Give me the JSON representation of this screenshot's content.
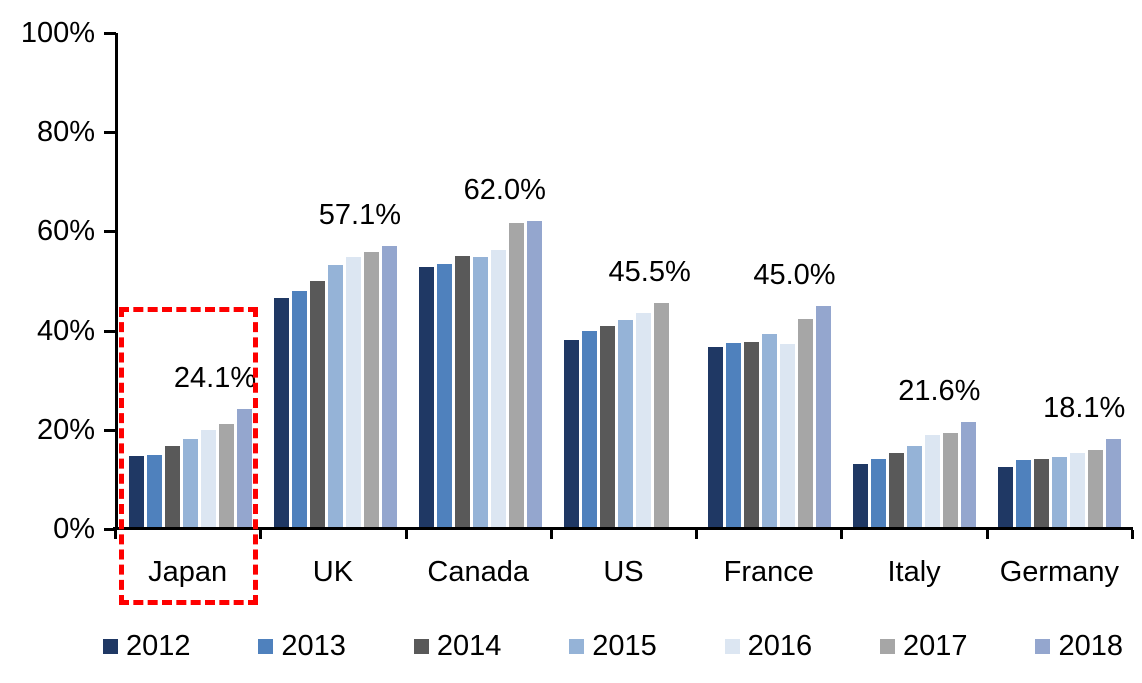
{
  "chart_data": {
    "type": "bar",
    "title": "",
    "xlabel": "",
    "ylabel": "",
    "ylim": [
      0,
      100
    ],
    "grid": false,
    "legend_position": "bottom",
    "yticks": [
      {
        "value": 0,
        "label": "0%"
      },
      {
        "value": 20,
        "label": "20%"
      },
      {
        "value": 40,
        "label": "40%"
      },
      {
        "value": 60,
        "label": "60%"
      },
      {
        "value": 80,
        "label": "80%"
      },
      {
        "value": 100,
        "label": "100%"
      }
    ],
    "categories": [
      "Japan",
      "UK",
      "Canada",
      "US",
      "France",
      "Italy",
      "Germany"
    ],
    "series": [
      {
        "name": "2012",
        "color": "#1F3864",
        "values": [
          14.8,
          46.5,
          52.9,
          38.2,
          36.6,
          13.2,
          12.5
        ]
      },
      {
        "name": "2013",
        "color": "#4F81BD",
        "values": [
          14.9,
          47.9,
          53.5,
          40.0,
          37.6,
          14.1,
          13.9
        ]
      },
      {
        "name": "2014",
        "color": "#595959",
        "values": [
          16.7,
          50.0,
          55.0,
          41.0,
          37.7,
          15.3,
          14.2
        ]
      },
      {
        "name": "2015",
        "color": "#95B3D7",
        "values": [
          18.2,
          53.2,
          54.8,
          42.2,
          39.3,
          16.8,
          14.6
        ]
      },
      {
        "name": "2016",
        "color": "#DCE6F2",
        "values": [
          19.9,
          54.9,
          56.2,
          43.5,
          37.3,
          19.0,
          15.3
        ]
      },
      {
        "name": "2017",
        "color": "#A6A6A6",
        "values": [
          21.2,
          55.8,
          61.7,
          45.5,
          42.3,
          19.3,
          15.9
        ]
      },
      {
        "name": "2018",
        "color": "#94A6CE",
        "values": [
          24.1,
          57.1,
          62.0,
          null,
          45.0,
          21.6,
          18.1
        ]
      }
    ],
    "data_labels": [
      "24.1%",
      "57.1%",
      "62.0%",
      "45.5%",
      "45.0%",
      "21.6%",
      "18.1%"
    ],
    "annotations": {
      "highlight": {
        "category": "Japan",
        "shape": "dashed-rectangle",
        "color": "#FE0000"
      }
    }
  }
}
